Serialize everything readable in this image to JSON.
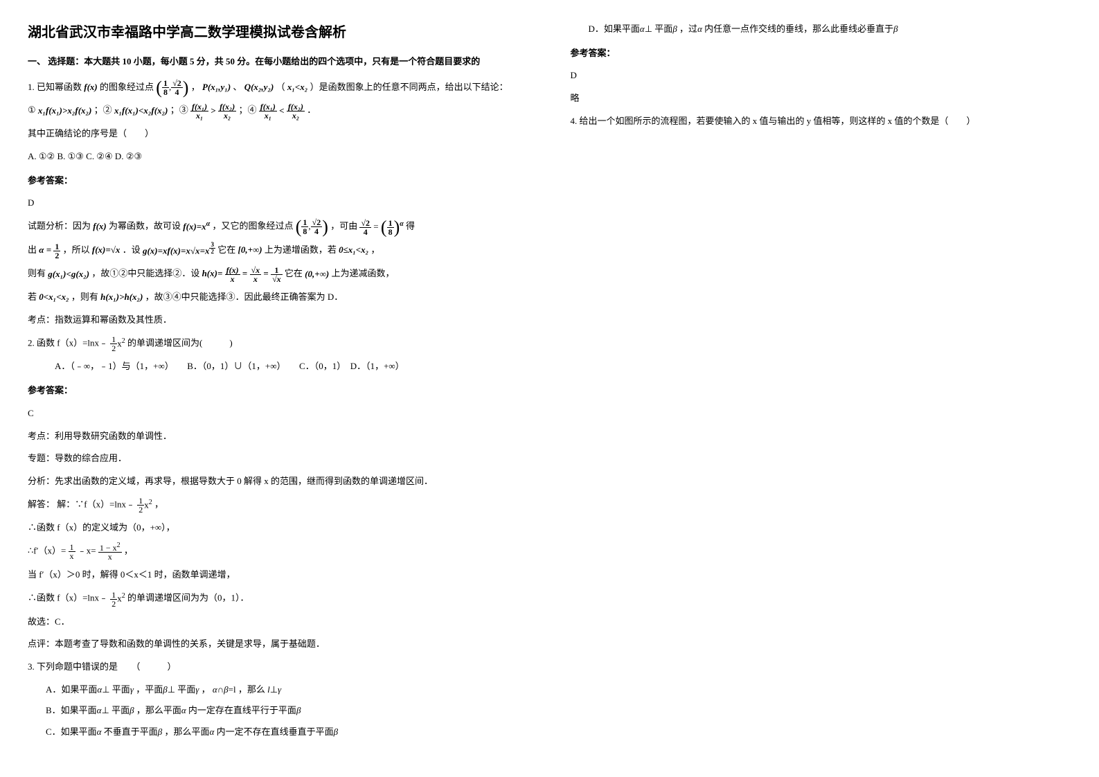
{
  "title": "湖北省武汉市幸福路中学高二数学理模拟试卷含解析",
  "section1": "一、 选择题：本大题共 10 小题，每小题 5 分，共 50 分。在每小题给出的四个选项中，只有是一个符合题目要求的",
  "q1": {
    "stem_a": "1. 已知幂函数",
    "stem_b": "的图象经过点",
    "stem_c": "，",
    "stem_d": "、",
    "stem_e": "（",
    "stem_f": "）是函数图象上的任意不同两点，给出以下结论：",
    "opts_line1_a": "①",
    "opts_line1_b": "；②",
    "opts_line1_c": "；③",
    "opts_line1_d": "；④",
    "opts_line1_e": "．",
    "opts_prompt": "其中正确结论的序号是（　　）",
    "opts": "A. ①② B. ①③ C. ②④ D. ②③",
    "ans_label": "参考答案：",
    "ans": "D",
    "analysis_a": "试题分析：因为",
    "analysis_b": "为幂函数，故可设",
    "analysis_c": "，又它的图象经过点",
    "analysis_d": "，可由",
    "analysis_e": "得",
    "analysis_f": "出",
    "analysis_g": "，所以",
    "analysis_h": "．设",
    "analysis_i": "它在",
    "analysis_j": "上为递增函数，若",
    "analysis_k": "，",
    "analysis_l": "则有",
    "analysis_m": "，故①②中只能选择②．设",
    "analysis_n": "它在",
    "analysis_o": "上为递减函数，",
    "analysis_p": "若",
    "analysis_q": "，则有",
    "analysis_r": "，故③④中只能选择③．因此最终正确答案为 D．",
    "analysis_end": "考点：指数运算和幂函数及其性质．"
  },
  "q2": {
    "stem_a": "2. 函数 f（x）=lnx﹣",
    "stem_b": "的单调递增区间为(　　　)",
    "opts": "　　　A．（﹣∞，﹣1）与（1，+∞）　　B．（0，1）∪（1，+∞）　　C．（0，1）　D．（1，+∞）",
    "ans_label": "参考答案：",
    "ans": "C",
    "line1": "考点：利用导数研究函数的单调性．",
    "line2": "专题：导数的综合应用．",
    "line3": "分析：先求出函数的定义域，再求导，根据导数大于 0 解得 x 的范围，继而得到函数的单调递增区间．",
    "line4a": "解答： 解：∵f（x）=lnx﹣",
    "line4b": "，",
    "line5": "∴函数 f（x）的定义域为（0，+∞），",
    "line6a": "∴f′（x）=",
    "line6b": "﹣x=",
    "line6c": "，",
    "line7": "当 f′（x）＞0 时，解得 0＜x＜1 时，函数单调递增，",
    "line8a": "∴函数 f（x）=lnx﹣",
    "line8b": "的单调递增区间为为（0，1）．",
    "line9": "故选：C．",
    "line10": "点评：本题考查了导数和函数的单调性的关系，关键是求导，属于基础题．"
  },
  "q3": {
    "stem": "3. 下列命题中错误的是　　（　　　）",
    "optA_a": "A．如果平面",
    "optA_b": "平面",
    "optA_c": "，平面",
    "optA_d": "平面",
    "optA_e": "，",
    "optA_f": "，那么",
    "optB_a": "B．如果平面",
    "optB_b": "平面",
    "optB_c": "，那么平面",
    "optB_d": "内一定存在直线平行于平面",
    "optC_a": "C．如果平面",
    "optC_b": "不垂直于平面",
    "optC_c": "，那么平面",
    "optC_d": "内一定不存在直线垂直于平面",
    "optD_a": "D．如果平面",
    "optD_b": "平面",
    "optD_c": "，过",
    "optD_d": "内任意一点作交线的垂线，那么此垂线必垂直于",
    "ans_label": "参考答案：",
    "ans": "D",
    "extra": "略"
  },
  "q4": {
    "stem": "4. 给出一个如图所示的流程图，若要使输入的 x 值与输出的 y 值相等，则这样的 x 值的个数是（　　）"
  },
  "sym": {
    "fx": "f(x)",
    "fx_xa": "f(x)=x",
    "alpha": "α",
    "beta": "β",
    "gamma": "γ",
    "l": "l",
    "perp": "⊥",
    "cap": "∩",
    "eq_l": "=l",
    "P": "P(x₁,y₁)",
    "Q": "Q(x₂,y₂)",
    "x1ltx2": "x₁<x₂",
    "c1": "x₁f(x₁)>x₂f(x₂)",
    "c2": "x₁f(x₁)<x₂f(x₂)",
    "fx1": "f(x₁)",
    "fx2": "f(x₂)",
    "x1": "x₁",
    "x2": "x₂",
    "gt": ">",
    "lt": "<",
    "half": "½",
    "alpha_half_a": "α =",
    "fx_sqrt": "f(x)=",
    "sqrtx": "√x",
    "gx": "g(x)=xf(x)=x",
    "sqrtx2": "√x",
    "eq_x32": "=x",
    "dom": "[0,+∞)",
    "le": "0≤x₁<x₂",
    "gx1lt": "g(x₁)<g(x₂)",
    "hx": "h(x)=",
    "eq1": "=",
    "eq2": "=",
    "one_over_sqrtx": "1",
    "dom2": "(0,+∞)",
    "lt2": "0<x₁<x₂",
    "hx1gt": "h(x₁)>h(x₂)",
    "one_eighth": "1",
    "eight": "8",
    "sqrt2": "√2",
    "four": "4",
    "one": "1",
    "two": "2",
    "xsq": "x",
    "x": "x",
    "one_minus_x2": "1 − x",
    "three_two": "3",
    "three_two_d": "2",
    "sup2": "2",
    "supa": "α"
  }
}
